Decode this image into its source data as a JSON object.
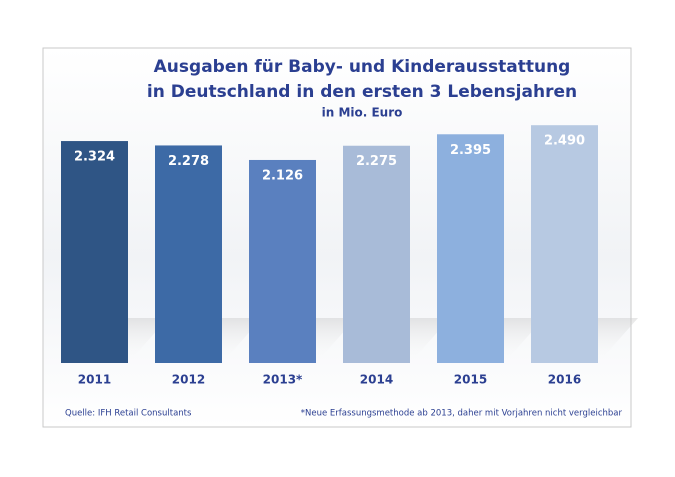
{
  "chart_data": {
    "type": "bar",
    "title": [
      "Ausgaben für Baby- und Kinderausstattung",
      "in Deutschland in den ersten 3 Lebensjahren"
    ],
    "subtitle": "in Mio. Euro",
    "categories": [
      "2011",
      "2012",
      "2013*",
      "2014",
      "2015",
      "2016"
    ],
    "values": [
      2324,
      2278,
      2126,
      2275,
      2395,
      2490
    ],
    "value_labels": [
      "2.324",
      "2.278",
      "2.126",
      "2.275",
      "2.395",
      "2.490"
    ],
    "colors": [
      "#2f5585",
      "#3d6aa6",
      "#5a80bf",
      "#a8bbd8",
      "#8db0de",
      "#b7c9e2"
    ],
    "source": "Quelle: IFH Retail Consultants",
    "note": "*Neue Erfassungsmethode ab 2013, daher mit Vorjahren nicht vergleichbar"
  }
}
